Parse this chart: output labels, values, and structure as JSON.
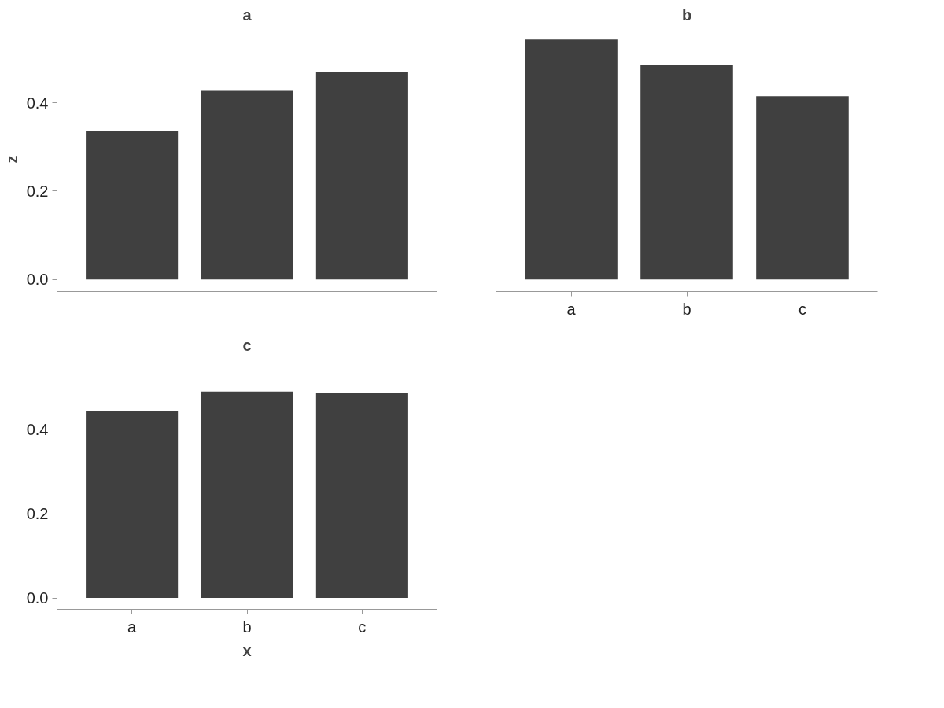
{
  "chart_data": [
    {
      "type": "bar",
      "title": "a",
      "ylabel": "z",
      "categories": [
        null,
        null,
        null
      ],
      "values": [
        0.335,
        0.427,
        0.469
      ],
      "color": "#404040",
      "ylim": [
        -0.027,
        0.571
      ],
      "yticks": [
        {
          "value": 0,
          "label": "0.0"
        },
        {
          "value": 0.2,
          "label": "0.2"
        },
        {
          "value": 0.4,
          "label": "0.4"
        }
      ],
      "grid": false,
      "tick_labels": "y"
    },
    {
      "type": "bar",
      "title": "b",
      "categories": [
        "a",
        "b",
        "c"
      ],
      "values": [
        0.543,
        0.486,
        0.415
      ],
      "color": "#404040",
      "ylim": [
        -0.027,
        0.571
      ],
      "grid": false,
      "tick_labels": "x"
    },
    {
      "type": "bar",
      "title": "c",
      "xlabel": "x",
      "categories": [
        "a",
        "b",
        "c"
      ],
      "values": [
        0.444,
        0.49,
        0.488
      ],
      "color": "#404040",
      "ylim": [
        -0.027,
        0.571
      ],
      "yticks": [
        {
          "value": 0,
          "label": "0.0"
        },
        {
          "value": 0.2,
          "label": "0.2"
        },
        {
          "value": 0.4,
          "label": "0.4"
        }
      ],
      "grid": false
    }
  ]
}
